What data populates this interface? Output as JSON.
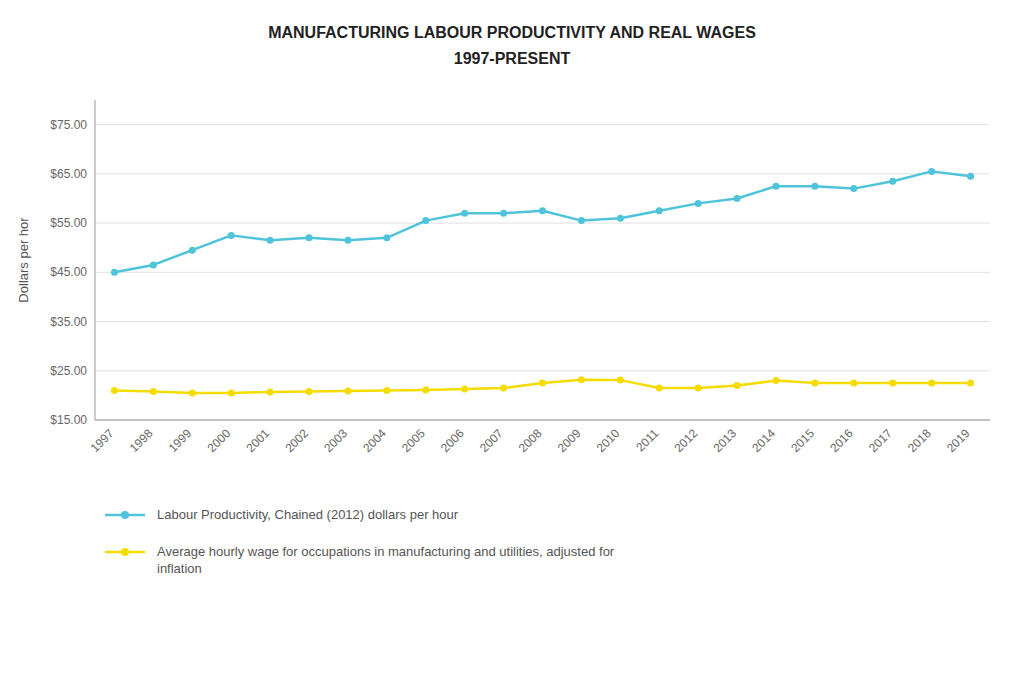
{
  "chart_data": {
    "type": "line",
    "title": "MANUFACTURING LABOUR PRODUCTIVITY AND REAL WAGES",
    "subtitle": "1997-PRESENT",
    "y_label": "Dollars per hor",
    "categories": [
      "1997",
      "1998",
      "1999",
      "2000",
      "2001",
      "2002",
      "2003",
      "2004",
      "2005",
      "2006",
      "2007",
      "2008",
      "2009",
      "2010",
      "2011",
      "2012",
      "2013",
      "2014",
      "2015",
      "2016",
      "2017",
      "2018",
      "2019"
    ],
    "series": [
      {
        "name": "Labour Productivity, Chained (2012) dollars per hour",
        "color": "#4FC3D9",
        "marker": "circle",
        "values": [
          45.0,
          46.5,
          49.5,
          52.5,
          51.5,
          52.0,
          51.5,
          52.0,
          55.5,
          57.0,
          57.0,
          57.5,
          55.5,
          56.0,
          57.5,
          59.0,
          60.0,
          62.5,
          62.5,
          62.0,
          63.5,
          65.5,
          64.5
        ]
      },
      {
        "name": "Average hourly wage for occupations in manufacturing and utilities, adjusted for\ninflation",
        "color": "#F5DC00",
        "marker": "circle",
        "values": [
          21.0,
          20.8,
          20.5,
          20.5,
          20.7,
          20.8,
          20.9,
          21.0,
          21.1,
          21.3,
          21.5,
          22.5,
          23.2,
          23.1,
          21.5,
          21.5,
          22.0,
          23.0,
          22.5,
          22.5,
          22.5,
          22.5,
          22.5
        ]
      }
    ],
    "ylim": [
      15.0,
      80.0
    ],
    "yticks": [
      {
        "value": 15.0,
        "label": "$15.00"
      },
      {
        "value": 25.0,
        "label": "$25.00"
      },
      {
        "value": 35.0,
        "label": "$35.00"
      },
      {
        "value": 45.0,
        "label": "$45.00"
      },
      {
        "value": 55.0,
        "label": "$55.00"
      },
      {
        "value": 65.0,
        "label": "$65.00"
      },
      {
        "value": 75.0,
        "label": "$75.00"
      }
    ],
    "grid": true,
    "legend": "bottom"
  }
}
